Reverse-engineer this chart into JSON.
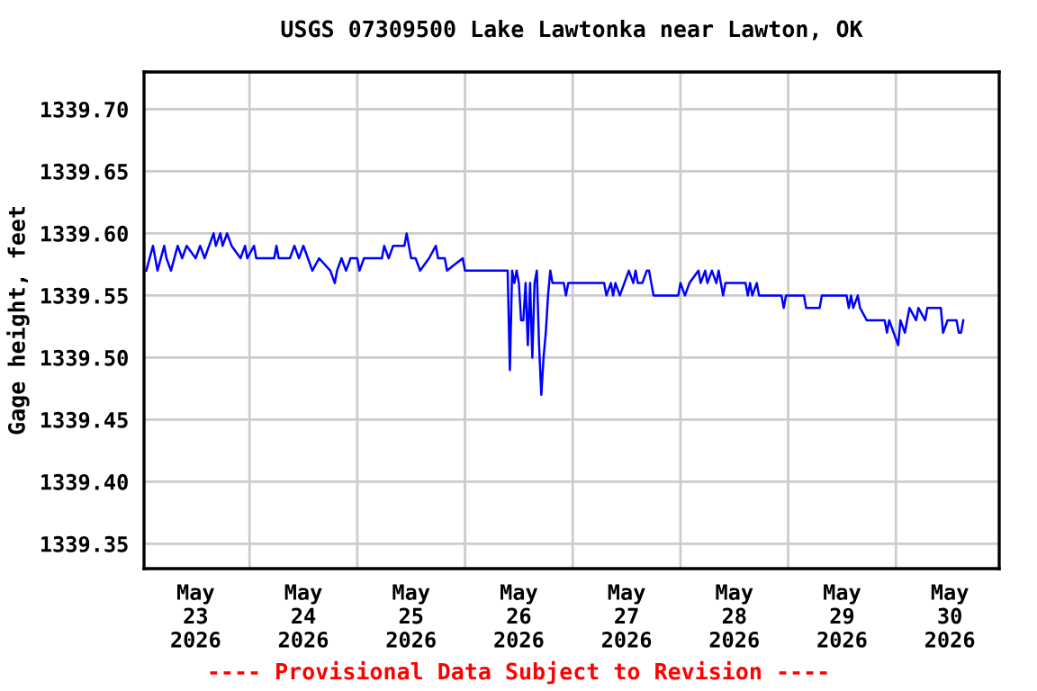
{
  "chart_data": {
    "type": "line",
    "title": "USGS 07309500 Lake Lawtonka near Lawton, OK",
    "ylabel": "Gage height, feet",
    "annotations": [
      "---- Provisional Data Subject to Revision ----"
    ],
    "x": [
      "2026-05-23T01:00",
      "2026-05-23T02:30",
      "2026-05-23T03:30",
      "2026-05-23T05:00",
      "2026-05-23T05:30",
      "2026-05-23T06:30",
      "2026-05-23T08:00",
      "2026-05-23T09:00",
      "2026-05-23T10:00",
      "2026-05-23T12:00",
      "2026-05-23T13:00",
      "2026-05-23T14:00",
      "2026-05-23T15:00",
      "2026-05-23T16:00",
      "2026-05-23T16:30",
      "2026-05-23T17:30",
      "2026-05-23T18:00",
      "2026-05-23T19:00",
      "2026-05-23T20:00",
      "2026-05-23T22:00",
      "2026-05-23T23:00",
      "2026-05-23T23:30",
      "2026-05-24T01:00",
      "2026-05-24T01:30",
      "2026-05-24T05:30",
      "2026-05-24T06:00",
      "2026-05-24T06:30",
      "2026-05-24T09:00",
      "2026-05-24T10:00",
      "2026-05-24T11:00",
      "2026-05-24T12:00",
      "2026-05-24T13:00",
      "2026-05-24T14:00",
      "2026-05-24T15:30",
      "2026-05-24T18:00",
      "2026-05-24T19:00",
      "2026-05-24T19:30",
      "2026-05-24T20:30",
      "2026-05-24T21:30",
      "2026-05-24T22:30",
      "2026-05-25T00:00",
      "2026-05-25T00:30",
      "2026-05-25T01:30",
      "2026-05-25T05:30",
      "2026-05-25T06:00",
      "2026-05-25T07:00",
      "2026-05-25T08:00",
      "2026-05-25T10:30",
      "2026-05-25T11:00",
      "2026-05-25T12:00",
      "2026-05-25T13:00",
      "2026-05-25T14:00",
      "2026-05-25T16:00",
      "2026-05-25T17:30",
      "2026-05-25T18:00",
      "2026-05-25T19:30",
      "2026-05-25T20:00",
      "2026-05-25T23:30",
      "2026-05-26T00:00",
      "2026-05-26T09:30",
      "2026-05-26T10:00",
      "2026-05-26T10:30",
      "2026-05-26T11:00",
      "2026-05-26T11:30",
      "2026-05-26T12:00",
      "2026-05-26T12:30",
      "2026-05-26T13:00",
      "2026-05-26T13:30",
      "2026-05-26T14:00",
      "2026-05-26T14:30",
      "2026-05-26T15:00",
      "2026-05-26T15:30",
      "2026-05-26T16:00",
      "2026-05-26T16:30",
      "2026-05-26T17:00",
      "2026-05-26T17:30",
      "2026-05-26T18:00",
      "2026-05-26T18:30",
      "2026-05-26T19:00",
      "2026-05-26T19:30",
      "2026-05-26T22:00",
      "2026-05-26T22:30",
      "2026-05-26T23:00",
      "2026-05-27T07:00",
      "2026-05-27T07:30",
      "2026-05-27T08:30",
      "2026-05-27T09:00",
      "2026-05-27T09:30",
      "2026-05-27T10:30",
      "2026-05-27T11:30",
      "2026-05-27T12:30",
      "2026-05-27T13:30",
      "2026-05-27T14:00",
      "2026-05-27T14:30",
      "2026-05-27T15:30",
      "2026-05-27T16:30",
      "2026-05-27T17:00",
      "2026-05-27T18:00",
      "2026-05-27T23:30",
      "2026-05-28T00:00",
      "2026-05-28T01:00",
      "2026-05-28T02:00",
      "2026-05-28T04:00",
      "2026-05-28T04:30",
      "2026-05-28T05:30",
      "2026-05-28T06:00",
      "2026-05-28T07:00",
      "2026-05-28T08:00",
      "2026-05-28T08:30",
      "2026-05-28T09:30",
      "2026-05-28T10:00",
      "2026-05-28T14:30",
      "2026-05-28T15:00",
      "2026-05-28T15:30",
      "2026-05-28T16:00",
      "2026-05-28T17:00",
      "2026-05-28T17:30",
      "2026-05-28T22:30",
      "2026-05-28T23:00",
      "2026-05-28T23:30",
      "2026-05-29T03:30",
      "2026-05-29T04:00",
      "2026-05-29T07:00",
      "2026-05-29T07:30",
      "2026-05-29T13:00",
      "2026-05-29T13:30",
      "2026-05-29T14:00",
      "2026-05-29T14:30",
      "2026-05-29T15:30",
      "2026-05-29T16:00",
      "2026-05-29T17:30",
      "2026-05-29T21:30",
      "2026-05-29T22:00",
      "2026-05-29T22:30",
      "2026-05-29T23:30",
      "2026-05-30T00:30",
      "2026-05-30T01:00",
      "2026-05-30T02:00",
      "2026-05-30T02:30",
      "2026-05-30T03:00",
      "2026-05-30T04:30",
      "2026-05-30T05:00",
      "2026-05-30T06:30",
      "2026-05-30T07:00",
      "2026-05-30T10:00",
      "2026-05-30T10:30",
      "2026-05-30T11:30",
      "2026-05-30T13:30",
      "2026-05-30T14:00",
      "2026-05-30T14:30",
      "2026-05-30T15:00"
    ],
    "series": [
      {
        "color": "#0000ff",
        "values": [
          1339.57,
          1339.59,
          1339.57,
          1339.59,
          1339.58,
          1339.57,
          1339.59,
          1339.58,
          1339.59,
          1339.58,
          1339.59,
          1339.58,
          1339.59,
          1339.6,
          1339.59,
          1339.6,
          1339.59,
          1339.6,
          1339.59,
          1339.58,
          1339.59,
          1339.58,
          1339.59,
          1339.58,
          1339.58,
          1339.59,
          1339.58,
          1339.58,
          1339.59,
          1339.58,
          1339.59,
          1339.58,
          1339.57,
          1339.58,
          1339.57,
          1339.56,
          1339.57,
          1339.58,
          1339.57,
          1339.58,
          1339.58,
          1339.57,
          1339.58,
          1339.58,
          1339.59,
          1339.58,
          1339.59,
          1339.59,
          1339.6,
          1339.58,
          1339.58,
          1339.57,
          1339.58,
          1339.59,
          1339.58,
          1339.58,
          1339.57,
          1339.58,
          1339.57,
          1339.57,
          1339.49,
          1339.57,
          1339.56,
          1339.57,
          1339.56,
          1339.53,
          1339.53,
          1339.56,
          1339.51,
          1339.56,
          1339.5,
          1339.56,
          1339.57,
          1339.51,
          1339.47,
          1339.5,
          1339.52,
          1339.55,
          1339.57,
          1339.56,
          1339.56,
          1339.55,
          1339.56,
          1339.56,
          1339.55,
          1339.56,
          1339.55,
          1339.56,
          1339.55,
          1339.56,
          1339.57,
          1339.56,
          1339.57,
          1339.56,
          1339.56,
          1339.57,
          1339.57,
          1339.55,
          1339.55,
          1339.56,
          1339.55,
          1339.56,
          1339.57,
          1339.56,
          1339.57,
          1339.56,
          1339.57,
          1339.56,
          1339.57,
          1339.55,
          1339.56,
          1339.56,
          1339.55,
          1339.56,
          1339.55,
          1339.56,
          1339.55,
          1339.55,
          1339.54,
          1339.55,
          1339.55,
          1339.54,
          1339.54,
          1339.55,
          1339.55,
          1339.54,
          1339.55,
          1339.54,
          1339.55,
          1339.54,
          1339.53,
          1339.53,
          1339.52,
          1339.53,
          1339.52,
          1339.51,
          1339.53,
          1339.52,
          1339.53,
          1339.54,
          1339.53,
          1339.54,
          1339.53,
          1339.54,
          1339.54,
          1339.52,
          1339.53,
          1339.53,
          1339.52,
          1339.52,
          1339.53
        ]
      }
    ],
    "xlim": [
      "2026-05-23T00:30",
      "2026-05-30T23:00"
    ],
    "xticks": [
      {
        "value": "2026-05-23T12:00",
        "label": "May\n23\n2026"
      },
      {
        "value": "2026-05-24T00:00",
        "label": null
      },
      {
        "value": "2026-05-24T12:00",
        "label": "May\n24\n2026"
      },
      {
        "value": "2026-05-25T00:00",
        "label": null
      },
      {
        "value": "2026-05-25T12:00",
        "label": "May\n25\n2026"
      },
      {
        "value": "2026-05-26T00:00",
        "label": null
      },
      {
        "value": "2026-05-26T12:00",
        "label": "May\n26\n2026"
      },
      {
        "value": "2026-05-27T00:00",
        "label": null
      },
      {
        "value": "2026-05-27T12:00",
        "label": "May\n27\n2026"
      },
      {
        "value": "2026-05-28T00:00",
        "label": null
      },
      {
        "value": "2026-05-28T12:00",
        "label": "May\n28\n2026"
      },
      {
        "value": "2026-05-29T00:00",
        "label": null
      },
      {
        "value": "2026-05-29T12:00",
        "label": "May\n29\n2026"
      },
      {
        "value": "2026-05-30T00:00",
        "label": null
      },
      {
        "value": "2026-05-30T12:00",
        "label": "May\n30\n2026"
      }
    ],
    "ylim": [
      1339.33,
      1339.73
    ],
    "yticks": [
      1339.35,
      {
        "value": 1339.4,
        "label": "1339.40"
      },
      1339.45,
      {
        "value": 1339.5,
        "label": "1339.50"
      },
      1339.55,
      {
        "value": 1339.6,
        "label": "1339.60"
      },
      1339.65,
      {
        "value": 1339.7,
        "label": "1339.70"
      }
    ],
    "grid": true,
    "marker": "none",
    "line_style": "solid"
  }
}
